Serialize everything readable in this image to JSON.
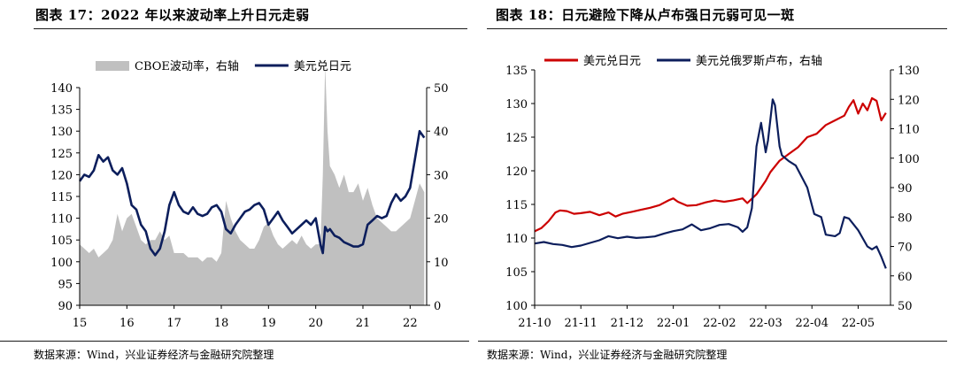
{
  "figures": [
    {
      "title": "图表 17：2022 年以来波动率上升日元走弱",
      "source": "数据来源：Wind，兴业证券经济与金融研究院整理"
    },
    {
      "title": "图表 18：日元避险下降从卢布强日元弱可见一斑",
      "source": "数据来源：Wind，兴业证券经济与金融研究院整理"
    }
  ],
  "chart_data": [
    {
      "type": "line",
      "title": "",
      "xlabel": "",
      "ylabel": "",
      "x_ticks": [
        "15",
        "16",
        "17",
        "18",
        "19",
        "20",
        "21",
        "22"
      ],
      "y_left_ticks": [
        90,
        95,
        100,
        105,
        110,
        115,
        120,
        125,
        130,
        135,
        140
      ],
      "y_right_ticks": [
        0,
        10,
        20,
        30,
        40,
        50
      ],
      "ylim_left": [
        90,
        140
      ],
      "ylim_right": [
        0,
        50
      ],
      "xlim": [
        2015.0,
        2022.35
      ],
      "legend_position": "top",
      "grid": false,
      "series": [
        {
          "name": "CBOE波动率，右轴",
          "type": "area",
          "axis": "right",
          "color": "#c0c0c0",
          "x": [
            2015.0,
            2015.1,
            2015.2,
            2015.3,
            2015.4,
            2015.5,
            2015.6,
            2015.7,
            2015.8,
            2015.9,
            2016.0,
            2016.1,
            2016.2,
            2016.3,
            2016.4,
            2016.5,
            2016.6,
            2016.7,
            2016.8,
            2016.9,
            2017.0,
            2017.1,
            2017.2,
            2017.3,
            2017.4,
            2017.5,
            2017.6,
            2017.7,
            2017.8,
            2017.9,
            2018.0,
            2018.1,
            2018.2,
            2018.3,
            2018.4,
            2018.5,
            2018.6,
            2018.7,
            2018.8,
            2018.9,
            2019.0,
            2019.1,
            2019.2,
            2019.3,
            2019.4,
            2019.5,
            2019.6,
            2019.7,
            2019.8,
            2019.9,
            2020.0,
            2020.1,
            2020.15,
            2020.2,
            2020.25,
            2020.3,
            2020.4,
            2020.5,
            2020.6,
            2020.7,
            2020.8,
            2020.9,
            2021.0,
            2021.1,
            2021.2,
            2021.3,
            2021.4,
            2021.5,
            2021.6,
            2021.7,
            2021.8,
            2021.9,
            2022.0,
            2022.1,
            2022.2,
            2022.3
          ],
          "values": [
            14,
            13,
            12,
            13,
            11,
            12,
            13,
            15,
            21,
            17,
            20,
            21,
            18,
            15,
            14,
            15,
            15,
            17,
            15,
            16,
            12,
            12,
            12,
            11,
            11,
            11,
            10,
            11,
            11,
            10,
            12,
            24,
            20,
            17,
            15,
            14,
            13,
            13,
            15,
            18,
            19,
            16,
            14,
            13,
            14,
            15,
            14,
            16,
            14,
            13,
            14,
            14,
            30,
            55,
            40,
            32,
            30,
            27,
            30,
            26,
            26,
            28,
            24,
            27,
            23,
            20,
            19,
            18,
            17,
            17,
            18,
            19,
            20,
            24,
            28,
            26
          ]
        },
        {
          "name": "美元兑日元",
          "type": "line",
          "axis": "left",
          "color": "#0c1e5c",
          "x": [
            2015.0,
            2015.1,
            2015.2,
            2015.3,
            2015.4,
            2015.5,
            2015.6,
            2015.7,
            2015.8,
            2015.9,
            2016.0,
            2016.1,
            2016.2,
            2016.3,
            2016.4,
            2016.5,
            2016.6,
            2016.7,
            2016.8,
            2016.9,
            2017.0,
            2017.1,
            2017.2,
            2017.3,
            2017.4,
            2017.5,
            2017.6,
            2017.7,
            2017.8,
            2017.9,
            2018.0,
            2018.1,
            2018.2,
            2018.3,
            2018.4,
            2018.5,
            2018.6,
            2018.7,
            2018.8,
            2018.9,
            2019.0,
            2019.1,
            2019.2,
            2019.3,
            2019.4,
            2019.5,
            2019.6,
            2019.7,
            2019.8,
            2019.9,
            2020.0,
            2020.1,
            2020.15,
            2020.2,
            2020.25,
            2020.3,
            2020.4,
            2020.5,
            2020.6,
            2020.7,
            2020.8,
            2020.9,
            2021.0,
            2021.1,
            2021.2,
            2021.3,
            2021.4,
            2021.5,
            2021.6,
            2021.7,
            2021.8,
            2021.9,
            2022.0,
            2022.1,
            2022.2,
            2022.3
          ],
          "values": [
            118.5,
            120.0,
            119.5,
            121.0,
            124.5,
            123.0,
            124.0,
            121.0,
            120.0,
            121.5,
            118.0,
            113.0,
            112.0,
            108.5,
            107.0,
            103.0,
            101.5,
            103.0,
            107.0,
            113.0,
            116.0,
            113.0,
            111.5,
            111.0,
            112.5,
            111.0,
            110.5,
            111.0,
            112.5,
            113.0,
            111.5,
            107.5,
            106.5,
            108.5,
            110.0,
            111.5,
            112.0,
            113.0,
            113.5,
            112.0,
            108.5,
            110.0,
            111.5,
            109.5,
            108.0,
            106.5,
            107.5,
            108.5,
            109.5,
            108.5,
            110.0,
            104.0,
            102.0,
            108.0,
            107.0,
            107.5,
            106.0,
            105.5,
            104.5,
            104.0,
            103.5,
            103.5,
            104.0,
            108.5,
            109.5,
            110.5,
            110.0,
            110.5,
            113.5,
            115.5,
            114.0,
            115.0,
            117.0,
            123.5,
            130.0,
            128.5
          ]
        }
      ]
    },
    {
      "type": "line",
      "title": "",
      "xlabel": "",
      "ylabel": "",
      "x_ticks": [
        "21-10",
        "21-11",
        "21-12",
        "22-01",
        "22-02",
        "22-03",
        "22-04",
        "22-05"
      ],
      "y_left_ticks": [
        100,
        105,
        110,
        115,
        120,
        125,
        130,
        135
      ],
      "y_right_ticks": [
        50,
        60,
        70,
        80,
        90,
        100,
        110,
        120,
        130
      ],
      "ylim_left": [
        100,
        135
      ],
      "ylim_right": [
        50,
        130
      ],
      "xlim": [
        0,
        7.7
      ],
      "legend_position": "top",
      "grid": false,
      "series": [
        {
          "name": "美元兑日元",
          "axis": "left",
          "color": "#cc0000",
          "x": [
            0.0,
            0.15,
            0.3,
            0.45,
            0.55,
            0.7,
            0.85,
            1.0,
            1.2,
            1.4,
            1.6,
            1.75,
            1.9,
            2.1,
            2.3,
            2.5,
            2.7,
            2.9,
            3.0,
            3.1,
            3.3,
            3.5,
            3.7,
            3.9,
            4.1,
            4.3,
            4.5,
            4.6,
            4.8,
            5.0,
            5.1,
            5.3,
            5.5,
            5.7,
            5.9,
            6.1,
            6.3,
            6.5,
            6.7,
            6.8,
            6.9,
            7.0,
            7.1,
            7.2,
            7.3,
            7.4,
            7.5,
            7.6
          ],
          "values": [
            111.0,
            111.5,
            112.5,
            113.8,
            114.1,
            114.0,
            113.6,
            113.7,
            113.9,
            113.4,
            113.8,
            113.2,
            113.6,
            113.9,
            114.2,
            114.5,
            114.9,
            115.6,
            115.9,
            115.4,
            114.8,
            114.9,
            115.3,
            115.6,
            115.4,
            115.6,
            115.9,
            115.2,
            116.5,
            118.5,
            119.8,
            121.5,
            122.5,
            123.5,
            125.0,
            125.5,
            126.8,
            127.5,
            128.2,
            129.5,
            130.5,
            128.5,
            130.0,
            129.0,
            130.8,
            130.4,
            127.5,
            128.6
          ]
        },
        {
          "name": "美元兑俄罗斯卢布，右轴",
          "axis": "right",
          "color": "#0c1e5c",
          "x": [
            0.0,
            0.2,
            0.4,
            0.6,
            0.8,
            1.0,
            1.2,
            1.4,
            1.6,
            1.8,
            2.0,
            2.2,
            2.4,
            2.6,
            2.8,
            3.0,
            3.2,
            3.4,
            3.6,
            3.8,
            4.0,
            4.2,
            4.4,
            4.5,
            4.6,
            4.7,
            4.8,
            4.9,
            5.0,
            5.05,
            5.15,
            5.2,
            5.3,
            5.35,
            5.5,
            5.65,
            5.8,
            5.9,
            6.0,
            6.05,
            6.2,
            6.3,
            6.5,
            6.6,
            6.7,
            6.8,
            7.0,
            7.2,
            7.3,
            7.4,
            7.5,
            7.6
          ],
          "values": [
            71.0,
            71.5,
            70.8,
            70.5,
            69.8,
            70.3,
            71.2,
            72.1,
            73.5,
            72.8,
            73.3,
            72.9,
            73.1,
            73.4,
            74.4,
            75.2,
            75.8,
            77.5,
            75.5,
            76.2,
            77.3,
            77.6,
            76.5,
            75.0,
            76.5,
            83.0,
            104.0,
            112.0,
            102.0,
            106.0,
            120.0,
            118.0,
            104.0,
            101.0,
            99.0,
            97.5,
            93.0,
            90.0,
            84.0,
            81.0,
            80.0,
            74.0,
            73.5,
            74.5,
            80.0,
            79.5,
            75.5,
            70.0,
            69.0,
            70.0,
            66.5,
            62.5
          ]
        }
      ]
    }
  ]
}
